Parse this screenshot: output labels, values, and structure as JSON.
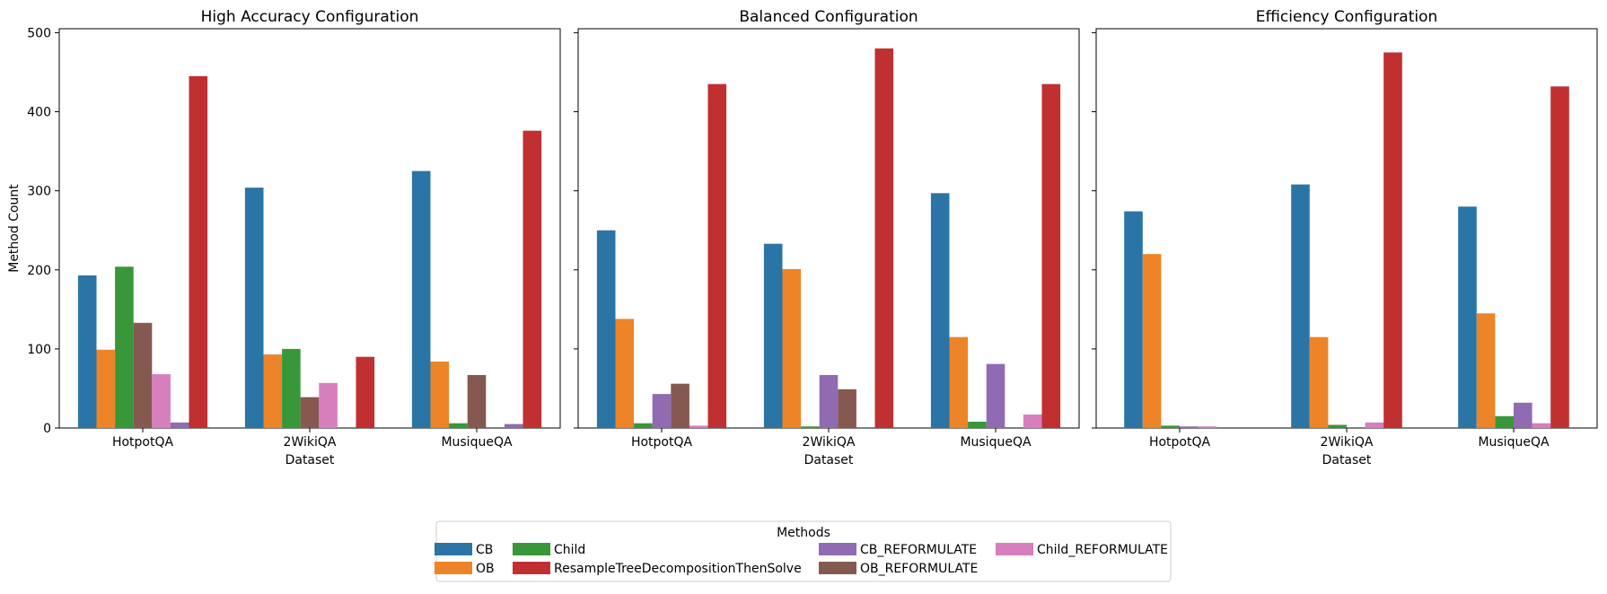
{
  "legend": {
    "title": "Methods",
    "entries": [
      {
        "name": "CB",
        "color": "#1f77b4"
      },
      {
        "name": "OB",
        "color": "#ff7f0e"
      },
      {
        "name": "Child",
        "color": "#2ca02c"
      },
      {
        "name": "ResampleTreeDecompositionThenSolve",
        "color": "#d62728"
      },
      {
        "name": "CB_REFORMULATE",
        "color": "#9467bd"
      },
      {
        "name": "OB_REFORMULATE",
        "color": "#8c564b"
      },
      {
        "name": "Child_REFORMULATE",
        "color": "#e377c2"
      }
    ]
  },
  "chart_data": [
    {
      "type": "bar",
      "title": "High Accuracy Configuration",
      "xlabel": "Dataset",
      "ylabel": "Method Count",
      "categories": [
        "HotpotQA",
        "2WikiQA",
        "MusiqueQA"
      ],
      "ylim": [
        0,
        505
      ],
      "yticks": [
        0,
        100,
        200,
        300,
        400,
        500
      ],
      "series": [
        {
          "name": "CB",
          "values": [
            193,
            304,
            325
          ]
        },
        {
          "name": "OB",
          "values": [
            99,
            93,
            84
          ]
        },
        {
          "name": "Child",
          "values": [
            204,
            100,
            6
          ]
        },
        {
          "name": "OB_REFORMULATE",
          "values": [
            133,
            39,
            67
          ]
        },
        {
          "name": "Child_REFORMULATE",
          "values": [
            68,
            57,
            0
          ]
        },
        {
          "name": "CB_REFORMULATE",
          "values": [
            7,
            0,
            5
          ]
        },
        {
          "name": "ResampleTreeDecompositionThenSolve",
          "values": [
            445,
            90,
            376
          ]
        }
      ]
    },
    {
      "type": "bar",
      "title": "Balanced Configuration",
      "xlabel": "Dataset",
      "ylabel": "",
      "categories": [
        "HotpotQA",
        "2WikiQA",
        "MusiqueQA"
      ],
      "ylim": [
        0,
        505
      ],
      "yticks": [
        0,
        100,
        200,
        300,
        400,
        500
      ],
      "series": [
        {
          "name": "CB",
          "values": [
            250,
            233,
            297
          ]
        },
        {
          "name": "OB",
          "values": [
            138,
            201,
            115
          ]
        },
        {
          "name": "Child",
          "values": [
            6,
            2,
            8
          ]
        },
        {
          "name": "CB_REFORMULATE",
          "values": [
            43,
            67,
            81
          ]
        },
        {
          "name": "OB_REFORMULATE",
          "values": [
            56,
            49,
            0
          ]
        },
        {
          "name": "Child_REFORMULATE",
          "values": [
            3,
            0,
            17
          ]
        },
        {
          "name": "ResampleTreeDecompositionThenSolve",
          "values": [
            435,
            480,
            435
          ]
        }
      ]
    },
    {
      "type": "bar",
      "title": "Efficiency Configuration",
      "xlabel": "Dataset",
      "ylabel": "",
      "categories": [
        "HotpotQA",
        "2WikiQA",
        "MusiqueQA"
      ],
      "ylim": [
        0,
        505
      ],
      "yticks": [
        0,
        100,
        200,
        300,
        400,
        500
      ],
      "series": [
        {
          "name": "CB",
          "values": [
            274,
            308,
            280
          ]
        },
        {
          "name": "OB",
          "values": [
            220,
            115,
            145
          ]
        },
        {
          "name": "Child",
          "values": [
            3,
            4,
            15
          ]
        },
        {
          "name": "CB_REFORMULATE",
          "values": [
            2,
            0,
            32
          ]
        },
        {
          "name": "Child_REFORMULATE",
          "values": [
            2,
            7,
            6
          ]
        },
        {
          "name": "ResampleTreeDecompositionThenSolve",
          "values": [
            0,
            475,
            432
          ]
        }
      ]
    }
  ]
}
